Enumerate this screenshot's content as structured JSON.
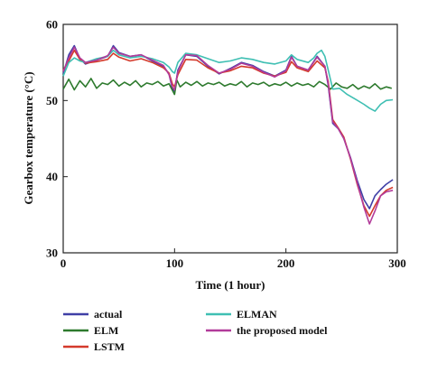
{
  "chart_data": {
    "type": "line",
    "xlabel": "Time (1 hour)",
    "ylabel": "Gearbox temperature (°C)",
    "xlim": [
      0,
      300
    ],
    "ylim": [
      30,
      60
    ],
    "xticks": [
      0,
      100,
      200,
      300
    ],
    "yticks": [
      30,
      40,
      50,
      60
    ],
    "grid": false,
    "legend_position": "bottom",
    "series": [
      {
        "name": "actual",
        "color": "#3f3fa6",
        "points": [
          [
            0,
            53.5
          ],
          [
            5,
            56
          ],
          [
            10,
            57.2
          ],
          [
            15,
            55.5
          ],
          [
            20,
            54.8
          ],
          [
            30,
            55.3
          ],
          [
            40,
            55.8
          ],
          [
            45,
            57.2
          ],
          [
            50,
            56.3
          ],
          [
            60,
            55.8
          ],
          [
            70,
            56
          ],
          [
            80,
            55.2
          ],
          [
            90,
            54.5
          ],
          [
            95,
            53.5
          ],
          [
            98,
            51.5
          ],
          [
            100,
            51.2
          ],
          [
            103,
            54
          ],
          [
            110,
            56
          ],
          [
            120,
            55.8
          ],
          [
            130,
            54.5
          ],
          [
            140,
            53.5
          ],
          [
            150,
            54.2
          ],
          [
            160,
            55
          ],
          [
            170,
            54.6
          ],
          [
            180,
            53.8
          ],
          [
            190,
            53.2
          ],
          [
            200,
            54
          ],
          [
            205,
            55.8
          ],
          [
            210,
            54.5
          ],
          [
            220,
            54
          ],
          [
            228,
            55.8
          ],
          [
            235,
            54.5
          ],
          [
            238,
            52
          ],
          [
            242,
            47
          ],
          [
            247,
            46.3
          ],
          [
            252,
            45
          ],
          [
            258,
            42.5
          ],
          [
            264,
            39.5
          ],
          [
            270,
            37
          ],
          [
            275,
            35.8
          ],
          [
            280,
            37.5
          ],
          [
            285,
            38.3
          ],
          [
            290,
            39
          ],
          [
            296,
            39.6
          ]
        ]
      },
      {
        "name": "ELM",
        "color": "#2e7a2e",
        "points": [
          [
            0,
            51.5
          ],
          [
            5,
            52.8
          ],
          [
            10,
            51.4
          ],
          [
            15,
            52.6
          ],
          [
            20,
            51.8
          ],
          [
            25,
            52.9
          ],
          [
            30,
            51.6
          ],
          [
            35,
            52.3
          ],
          [
            40,
            52.1
          ],
          [
            45,
            52.7
          ],
          [
            50,
            51.9
          ],
          [
            55,
            52.4
          ],
          [
            60,
            52
          ],
          [
            65,
            52.6
          ],
          [
            70,
            51.8
          ],
          [
            75,
            52.3
          ],
          [
            80,
            52.1
          ],
          [
            85,
            52.5
          ],
          [
            90,
            51.9
          ],
          [
            95,
            52.2
          ],
          [
            100,
            50.8
          ],
          [
            102,
            52.7
          ],
          [
            105,
            51.8
          ],
          [
            110,
            52.4
          ],
          [
            115,
            52
          ],
          [
            120,
            52.5
          ],
          [
            125,
            51.9
          ],
          [
            130,
            52.3
          ],
          [
            135,
            52.1
          ],
          [
            140,
            52.4
          ],
          [
            145,
            51.9
          ],
          [
            150,
            52.2
          ],
          [
            155,
            52
          ],
          [
            160,
            52.5
          ],
          [
            165,
            51.8
          ],
          [
            170,
            52.3
          ],
          [
            175,
            52.1
          ],
          [
            180,
            52.4
          ],
          [
            185,
            51.9
          ],
          [
            190,
            52.2
          ],
          [
            195,
            52
          ],
          [
            200,
            52.4
          ],
          [
            205,
            51.9
          ],
          [
            210,
            52.3
          ],
          [
            215,
            52
          ],
          [
            220,
            52.2
          ],
          [
            225,
            51.8
          ],
          [
            230,
            52.5
          ],
          [
            235,
            52.1
          ],
          [
            240,
            51.5
          ],
          [
            245,
            52.3
          ],
          [
            250,
            51.8
          ],
          [
            255,
            51.6
          ],
          [
            260,
            52.1
          ],
          [
            265,
            51.5
          ],
          [
            270,
            51.9
          ],
          [
            275,
            51.6
          ],
          [
            280,
            52.2
          ],
          [
            285,
            51.5
          ],
          [
            290,
            51.8
          ],
          [
            295,
            51.6
          ]
        ]
      },
      {
        "name": "LSTM",
        "color": "#d43a2c",
        "points": [
          [
            0,
            54
          ],
          [
            5,
            55.2
          ],
          [
            10,
            56.6
          ],
          [
            15,
            55.4
          ],
          [
            20,
            54.9
          ],
          [
            30,
            55.1
          ],
          [
            40,
            55.4
          ],
          [
            45,
            56.2
          ],
          [
            50,
            55.7
          ],
          [
            60,
            55.2
          ],
          [
            70,
            55.5
          ],
          [
            80,
            55
          ],
          [
            90,
            54.3
          ],
          [
            95,
            53.6
          ],
          [
            98,
            52.2
          ],
          [
            100,
            51.8
          ],
          [
            103,
            53.4
          ],
          [
            110,
            55.4
          ],
          [
            120,
            55.3
          ],
          [
            130,
            54.3
          ],
          [
            140,
            53.6
          ],
          [
            150,
            53.9
          ],
          [
            160,
            54.5
          ],
          [
            170,
            54.3
          ],
          [
            180,
            53.6
          ],
          [
            190,
            53.2
          ],
          [
            200,
            53.7
          ],
          [
            205,
            55.1
          ],
          [
            210,
            54.3
          ],
          [
            220,
            53.8
          ],
          [
            228,
            55.2
          ],
          [
            235,
            54.3
          ],
          [
            238,
            52.5
          ],
          [
            242,
            47.5
          ],
          [
            247,
            46.4
          ],
          [
            252,
            45.2
          ],
          [
            258,
            42.3
          ],
          [
            264,
            39
          ],
          [
            270,
            36.2
          ],
          [
            275,
            34.8
          ],
          [
            280,
            36.2
          ],
          [
            285,
            37.5
          ],
          [
            290,
            38.2
          ],
          [
            296,
            38.6
          ]
        ]
      },
      {
        "name": "ELMAN",
        "color": "#3fbfb3",
        "points": [
          [
            0,
            53.2
          ],
          [
            5,
            55
          ],
          [
            10,
            55.6
          ],
          [
            15,
            55.2
          ],
          [
            20,
            55
          ],
          [
            30,
            55.5
          ],
          [
            40,
            55.8
          ],
          [
            45,
            56.6
          ],
          [
            50,
            56
          ],
          [
            60,
            55.6
          ],
          [
            70,
            55.8
          ],
          [
            80,
            55.5
          ],
          [
            90,
            55
          ],
          [
            95,
            54.4
          ],
          [
            98,
            53.8
          ],
          [
            100,
            53.6
          ],
          [
            103,
            55
          ],
          [
            110,
            56.2
          ],
          [
            120,
            56
          ],
          [
            130,
            55.5
          ],
          [
            140,
            55
          ],
          [
            150,
            55.2
          ],
          [
            160,
            55.6
          ],
          [
            170,
            55.4
          ],
          [
            180,
            55
          ],
          [
            190,
            54.8
          ],
          [
            200,
            55.2
          ],
          [
            205,
            56
          ],
          [
            210,
            55.4
          ],
          [
            220,
            55
          ],
          [
            225,
            55.6
          ],
          [
            228,
            56.2
          ],
          [
            232,
            56.6
          ],
          [
            235,
            55.8
          ],
          [
            238,
            54
          ],
          [
            242,
            51.5
          ],
          [
            248,
            51.6
          ],
          [
            255,
            50.8
          ],
          [
            262,
            50.2
          ],
          [
            270,
            49.5
          ],
          [
            275,
            49
          ],
          [
            280,
            48.6
          ],
          [
            285,
            49.5
          ],
          [
            290,
            50
          ],
          [
            296,
            50.1
          ]
        ]
      },
      {
        "name": "the proposed model",
        "color": "#b23b9a",
        "points": [
          [
            0,
            53.8
          ],
          [
            5,
            55.6
          ],
          [
            10,
            57
          ],
          [
            15,
            55.6
          ],
          [
            20,
            55
          ],
          [
            30,
            55.3
          ],
          [
            40,
            55.9
          ],
          [
            45,
            57
          ],
          [
            50,
            56.2
          ],
          [
            60,
            55.8
          ],
          [
            70,
            56
          ],
          [
            80,
            55.3
          ],
          [
            90,
            54.6
          ],
          [
            95,
            53.4
          ],
          [
            98,
            51.8
          ],
          [
            100,
            51.4
          ],
          [
            103,
            53.8
          ],
          [
            110,
            56
          ],
          [
            120,
            55.9
          ],
          [
            130,
            54.6
          ],
          [
            140,
            53.6
          ],
          [
            150,
            54.1
          ],
          [
            160,
            54.9
          ],
          [
            170,
            54.5
          ],
          [
            180,
            53.7
          ],
          [
            190,
            53.1
          ],
          [
            200,
            53.9
          ],
          [
            205,
            55.7
          ],
          [
            210,
            54.5
          ],
          [
            220,
            54
          ],
          [
            228,
            55.7
          ],
          [
            235,
            54.5
          ],
          [
            238,
            52.2
          ],
          [
            242,
            47.2
          ],
          [
            247,
            46.3
          ],
          [
            252,
            45
          ],
          [
            258,
            42.4
          ],
          [
            264,
            39.2
          ],
          [
            270,
            36
          ],
          [
            275,
            33.8
          ],
          [
            280,
            35.5
          ],
          [
            285,
            37.5
          ],
          [
            290,
            38
          ],
          [
            296,
            38.2
          ]
        ]
      }
    ]
  }
}
